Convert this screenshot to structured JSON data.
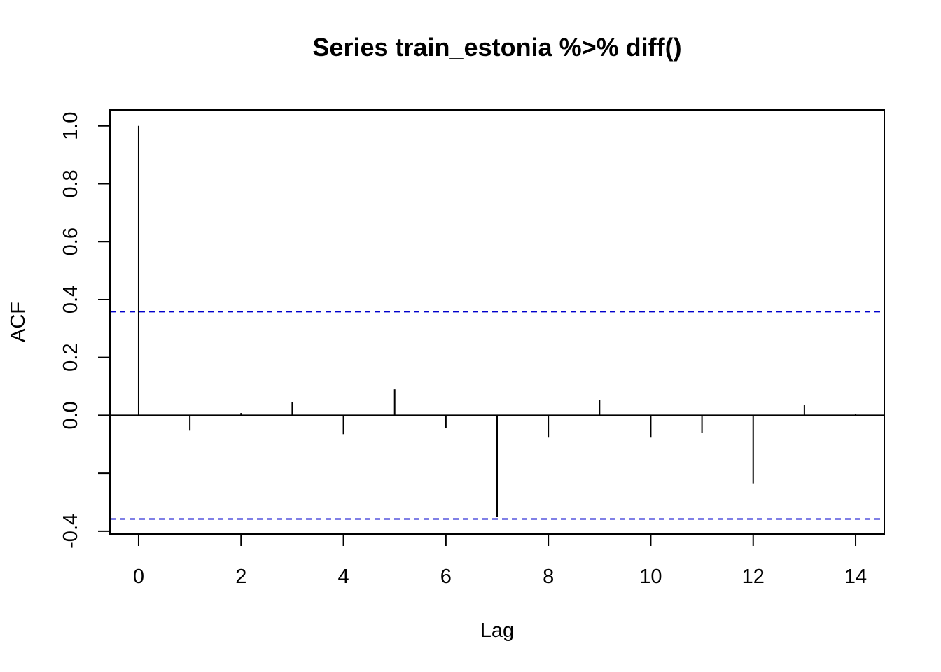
{
  "chart_data": {
    "type": "bar",
    "title": "Series  train_estonia %>% diff()",
    "xlabel": "Lag",
    "ylabel": "ACF",
    "x": [
      0,
      1,
      2,
      3,
      4,
      5,
      6,
      7,
      8,
      9,
      10,
      11,
      12,
      13,
      14
    ],
    "values": [
      1.0,
      -0.053,
      0.008,
      0.045,
      -0.065,
      0.09,
      -0.045,
      -0.352,
      -0.077,
      0.053,
      -0.077,
      -0.06,
      -0.235,
      0.035,
      0.005
    ],
    "xticks": [
      0,
      2,
      4,
      6,
      8,
      10,
      12,
      14
    ],
    "xtick_labels": [
      "0",
      "2",
      "4",
      "6",
      "8",
      "10",
      "12",
      "14"
    ],
    "yticks": [
      -0.4,
      -0.2,
      0.0,
      0.2,
      0.4,
      0.6,
      0.8,
      1.0
    ],
    "ytick_labels": [
      "-0.4",
      "",
      "0.0",
      "0.2",
      "0.4",
      "0.6",
      "0.8",
      "1.0"
    ],
    "xlim": [
      -0.56,
      14.56
    ],
    "ylim": [
      -0.41,
      1.055
    ],
    "confidence_bounds": [
      0.358,
      -0.358
    ],
    "confidence_color": "#0000cc",
    "bar_color": "#000000",
    "grid": false
  }
}
